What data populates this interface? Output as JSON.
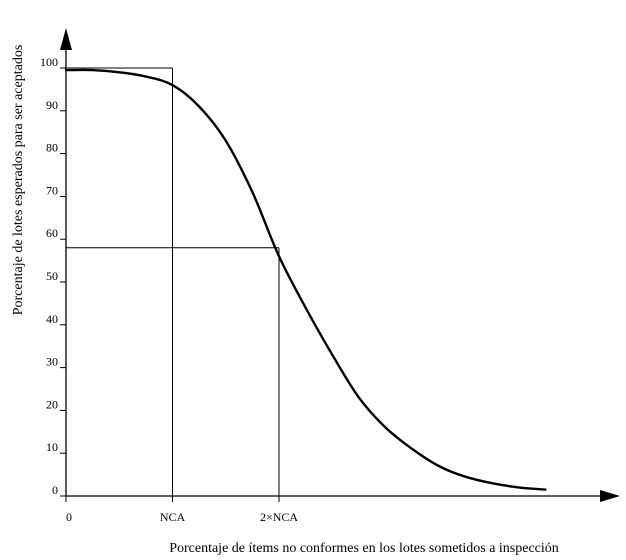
{
  "chart_data": {
    "type": "line",
    "title": "",
    "xlabel": "Porcentaje de ítems no conformes en los lotes sometidos a inspección",
    "ylabel": "Porcentaje de lotes  esperados para ser aceptados",
    "y_ticks": [
      "0",
      "10",
      "20",
      "30",
      "40",
      "50",
      "60",
      "70",
      "80",
      "90",
      "100"
    ],
    "x_tick_labels": [
      {
        "value": 0,
        "label": "0"
      },
      {
        "value": 1,
        "label": "NCA"
      },
      {
        "value": 2,
        "label": "2×NCA"
      }
    ],
    "xlim": [
      0,
      4.8
    ],
    "ylim": [
      0,
      100
    ],
    "grid": false,
    "reference_lines": [
      {
        "x": 1,
        "y": 100
      },
      {
        "x": 2,
        "y": 58
      }
    ],
    "series": [
      {
        "x": [
          0,
          0.25,
          0.5,
          0.75,
          1.0,
          1.25,
          1.5,
          1.75,
          2.0,
          2.25,
          2.5,
          2.75,
          3.0,
          3.25,
          3.5,
          3.75,
          4.0,
          4.25,
          4.5
        ],
        "values": [
          99.5,
          99.5,
          99,
          98,
          96,
          91,
          83,
          71,
          56,
          44,
          33,
          23,
          16,
          11,
          7,
          4.5,
          3,
          2,
          1.5
        ]
      }
    ]
  }
}
